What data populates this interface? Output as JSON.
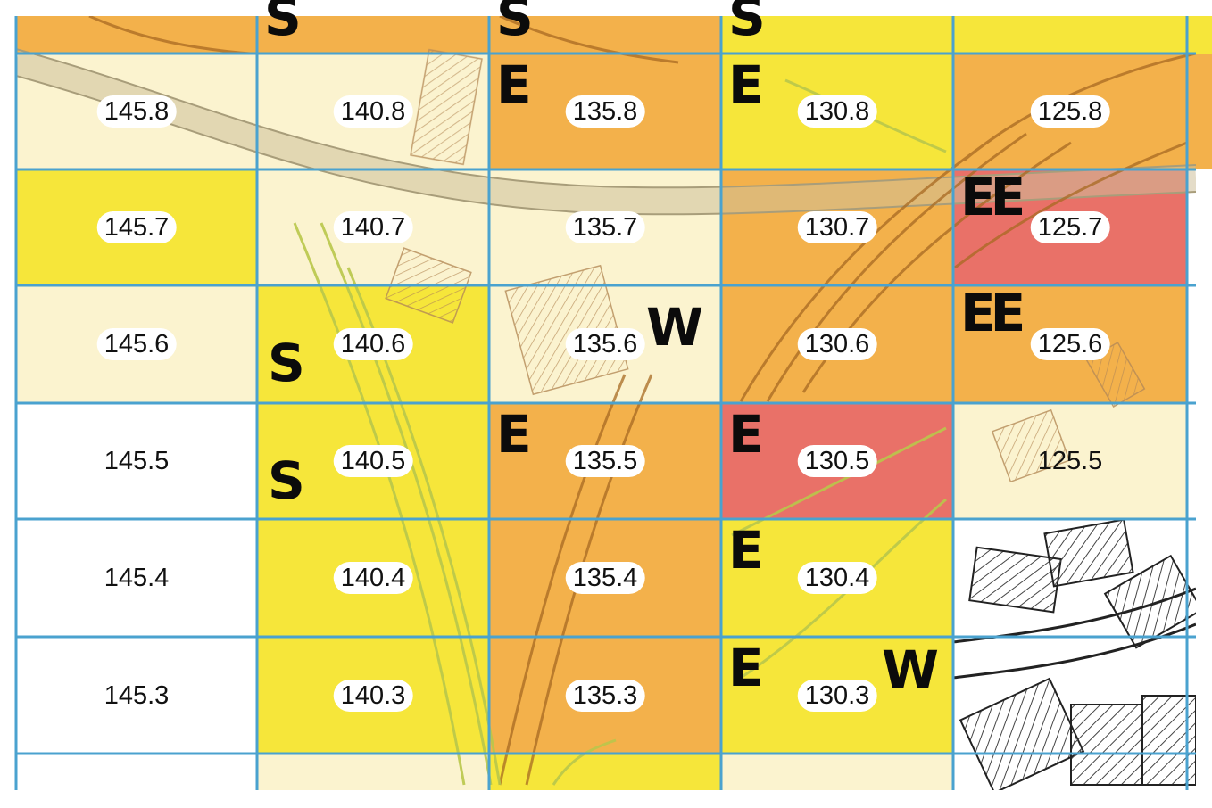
{
  "colors": {
    "white": "#ffffff",
    "cream": "#fbf3cf",
    "yellow": "#f6e63a",
    "orange": "#f3b14b",
    "red": "#e97168",
    "gridline": "#4aa2cf",
    "contour": "#b9c74b",
    "road": "#a86a22",
    "building_hatch": "#444444"
  },
  "rows": [
    {
      "cells": [
        {
          "value": "145.8",
          "fill": "cream"
        },
        {
          "value": "140.8",
          "fill": "cream"
        },
        {
          "value": "135.8",
          "fill": "orange",
          "letter": "E"
        },
        {
          "value": "130.8",
          "fill": "yellow",
          "letter": "E"
        },
        {
          "value": "125.8",
          "fill": "orange"
        }
      ]
    },
    {
      "cells": [
        {
          "value": "145.7",
          "fill": "yellow"
        },
        {
          "value": "140.7",
          "fill": "cream"
        },
        {
          "value": "135.7",
          "fill": "cream"
        },
        {
          "value": "130.7",
          "fill": "orange"
        },
        {
          "value": "125.7",
          "fill": "red",
          "letter": "EE"
        }
      ]
    },
    {
      "cells": [
        {
          "value": "145.6",
          "fill": "cream"
        },
        {
          "value": "140.6",
          "fill": "yellow",
          "letter": "S"
        },
        {
          "value": "135.6",
          "fill": "cream",
          "letter": "W"
        },
        {
          "value": "130.6",
          "fill": "orange"
        },
        {
          "value": "125.6",
          "fill": "orange",
          "letter": "EE"
        }
      ]
    },
    {
      "cells": [
        {
          "value": "145.5",
          "fill": "white",
          "plain": true
        },
        {
          "value": "140.5",
          "fill": "yellow",
          "letter": "S"
        },
        {
          "value": "135.5",
          "fill": "orange",
          "letter": "E"
        },
        {
          "value": "130.5",
          "fill": "red",
          "letter": "E"
        },
        {
          "value": "125.5",
          "fill": "cream",
          "plain": true
        }
      ]
    },
    {
      "cells": [
        {
          "value": "145.4",
          "fill": "white",
          "plain": true
        },
        {
          "value": "140.4",
          "fill": "yellow"
        },
        {
          "value": "135.4",
          "fill": "orange"
        },
        {
          "value": "130.4",
          "fill": "yellow",
          "letter": "E"
        },
        {
          "value": "",
          "fill": "white",
          "buildings": true
        }
      ]
    },
    {
      "cells": [
        {
          "value": "145.3",
          "fill": "white",
          "plain": true
        },
        {
          "value": "140.3",
          "fill": "yellow"
        },
        {
          "value": "135.3",
          "fill": "orange"
        },
        {
          "value": "130.3",
          "fill": "yellow",
          "letter": "E",
          "letter2": "W"
        },
        {
          "value": "",
          "fill": "white",
          "buildings": true
        }
      ]
    }
  ],
  "top_partial_row": {
    "fills": [
      "orange",
      "orange",
      "orange",
      "yellow",
      "yellow"
    ],
    "letters": [
      "",
      "S",
      "S",
      "S",
      ""
    ]
  },
  "bottom_partial_row": {
    "fills": [
      "white",
      "cream",
      "yellow",
      "cream",
      "white"
    ]
  }
}
